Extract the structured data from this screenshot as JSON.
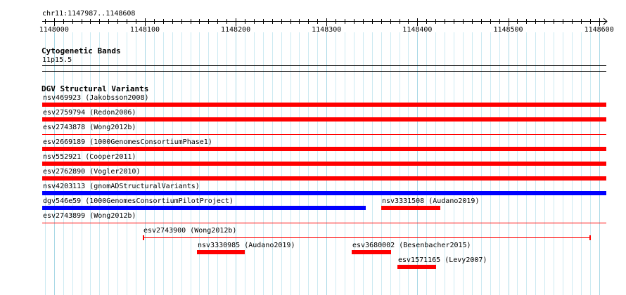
{
  "position_label": "chr11:1147987..1148608",
  "ruler": {
    "start": 1147987,
    "end": 1148608,
    "ticks": [
      1148000,
      1148100,
      1148200,
      1148300,
      1148400,
      1148500,
      1148600
    ],
    "minor_step": 10
  },
  "tracks": {
    "cytoband": {
      "title": "Cytogenetic Bands",
      "band_label": "11p15.5"
    },
    "dgv": {
      "title": "DGV Structural Variants",
      "features": [
        {
          "label": "nsv469923 (Jakobsson2008)",
          "start": 1147987,
          "end": 1148608,
          "color": "#ff0000",
          "style": "thick"
        },
        {
          "label": "esv2759794 (Redon2006)",
          "start": 1147987,
          "end": 1148608,
          "color": "#ff0000",
          "style": "thick"
        },
        {
          "label": "esv2743878 (Wong2012b)",
          "start": 1147987,
          "end": 1148608,
          "color": "#ff0000",
          "style": "thin"
        },
        {
          "label": "esv2669189 (1000GenomesConsortiumPhase1)",
          "start": 1147987,
          "end": 1148608,
          "color": "#ff0000",
          "style": "thick"
        },
        {
          "label": "nsv552921 (Cooper2011)",
          "start": 1147987,
          "end": 1148608,
          "color": "#ff0000",
          "style": "thick"
        },
        {
          "label": "esv2762890 (Vogler2010)",
          "start": 1147987,
          "end": 1148608,
          "color": "#ff0000",
          "style": "thick"
        },
        {
          "label": "nsv4203113 (gnomADStructuralVariants)",
          "start": 1147987,
          "end": 1148608,
          "color": "#0000ff",
          "style": "thick"
        },
        {
          "label": "dgv546e59 (1000GenomesConsortiumPilotProject)",
          "start": 1147987,
          "end": 1148343,
          "color": "#0000ff",
          "style": "thick"
        },
        {
          "label": "nsv3331508 (Audano2019)",
          "start": 1148360,
          "end": 1148425,
          "color": "#ff0000",
          "style": "thick"
        },
        {
          "label": "esv2743899 (Wong2012b)",
          "start": 1147987,
          "end": 1148608,
          "color": "#ff0000",
          "style": "thin"
        },
        {
          "label": "esv2743900 (Wong2012b)",
          "start": 1148098,
          "end": 1148591,
          "color": "#ff0000",
          "style": "thin-capped"
        },
        {
          "label": "nsv3330985 (Audano2019)",
          "start": 1148157,
          "end": 1148210,
          "color": "#ff0000",
          "style": "thick"
        },
        {
          "label": "esv3680002 (Besenbacher2015)",
          "start": 1148328,
          "end": 1148371,
          "color": "#ff0000",
          "style": "thick"
        },
        {
          "label": "esv1571165 (Levy2007)",
          "start": 1148378,
          "end": 1148421,
          "color": "#ff0000",
          "style": "thick"
        }
      ]
    }
  }
}
